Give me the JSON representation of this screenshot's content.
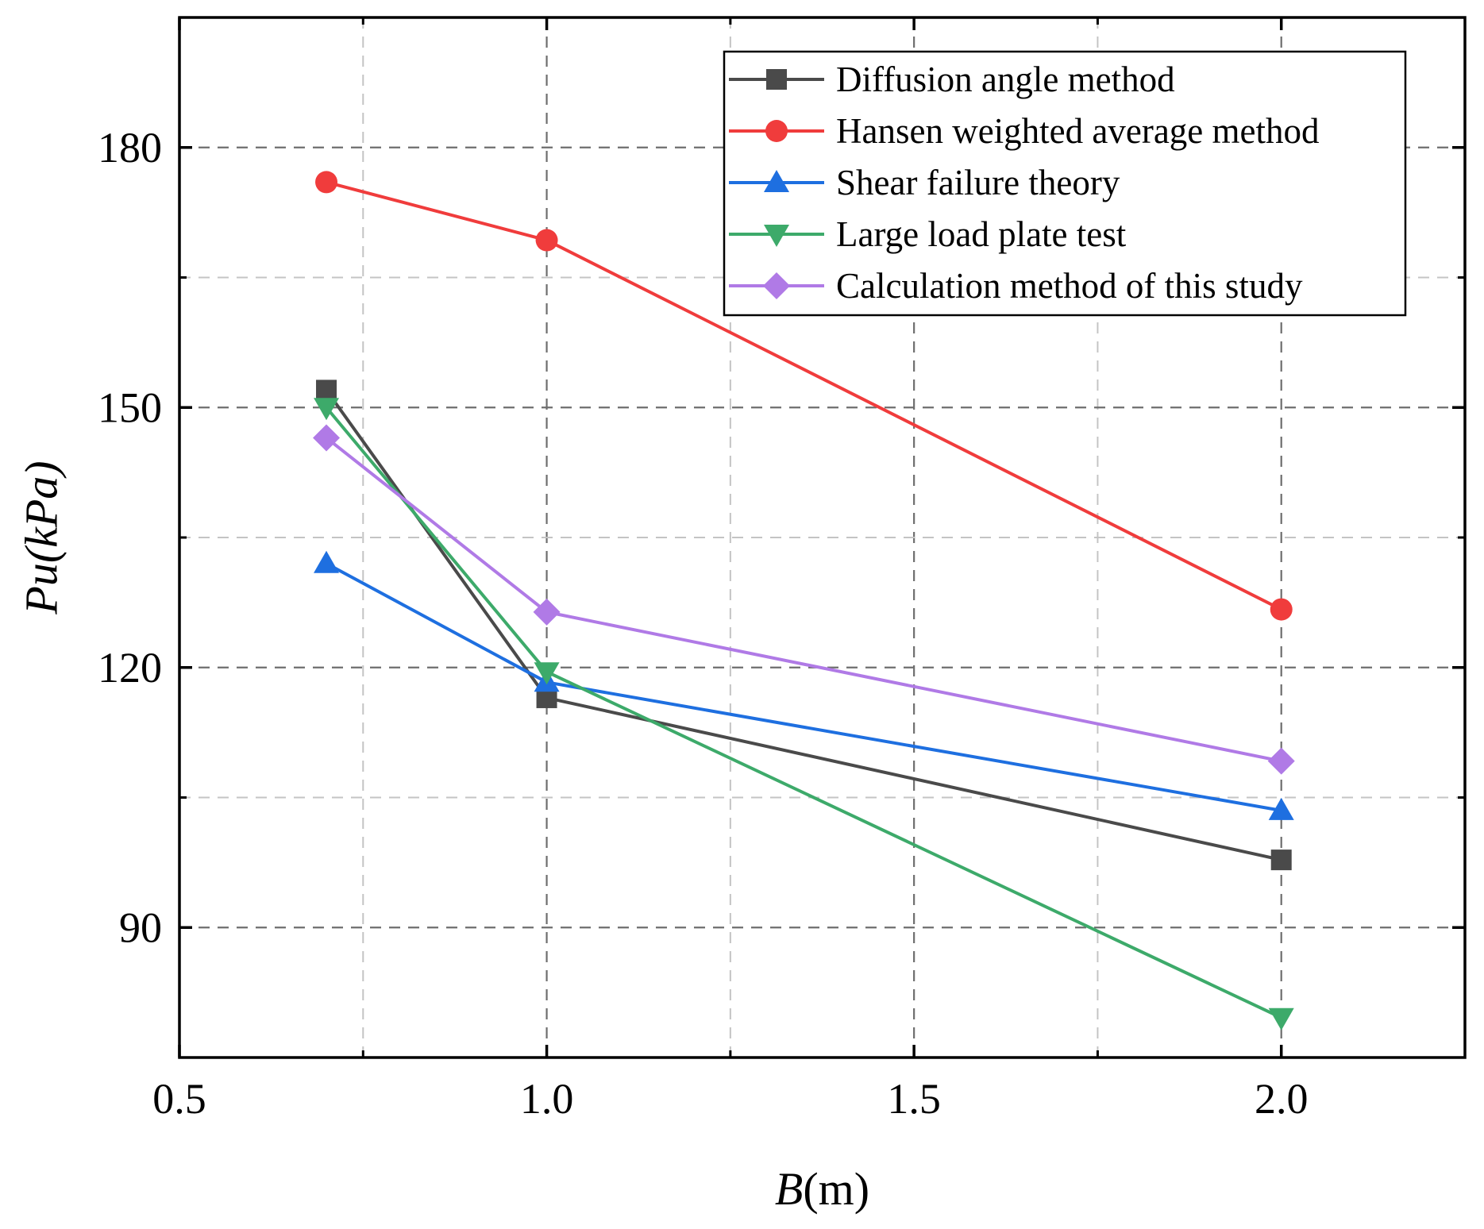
{
  "chart_data": {
    "type": "line",
    "categories": [
      "0.7",
      "1.0",
      "2.0"
    ],
    "x": [
      0.7,
      1.0,
      2.0
    ],
    "xlabel": "B(m)",
    "ylabel": "Pu(kPa)",
    "xlim": [
      0.5,
      2.25
    ],
    "ylim": [
      75,
      195
    ],
    "xticks": [
      0.5,
      1.0,
      1.5,
      2.0
    ],
    "xtick_labels": [
      "0.5",
      "1.0",
      "1.5",
      "2.0"
    ],
    "yticks": [
      90,
      120,
      150,
      180
    ],
    "ytick_labels": [
      "90",
      "120",
      "150",
      "180"
    ],
    "grid": true,
    "legend_position": "top-right",
    "series": [
      {
        "name": "Diffusion angle method",
        "color": "#4a4a4a",
        "marker": "square",
        "values": [
          152,
          116.5,
          97.8
        ]
      },
      {
        "name": "Hansen weighted average method",
        "color": "#f03c3c",
        "marker": "circle",
        "values": [
          176,
          169.3,
          126.7
        ]
      },
      {
        "name": "Shear failure theory",
        "color": "#1e6fe0",
        "marker": "triangle-up",
        "values": [
          132,
          118.3,
          103.5
        ]
      },
      {
        "name": "Large load plate test",
        "color": "#3daa6a",
        "marker": "triangle-down",
        "values": [
          150,
          119.5,
          79.6
        ]
      },
      {
        "name": "Calculation method of this study",
        "color": "#b07ae6",
        "marker": "diamond",
        "values": [
          146.5,
          126.4,
          109.2
        ]
      }
    ]
  }
}
